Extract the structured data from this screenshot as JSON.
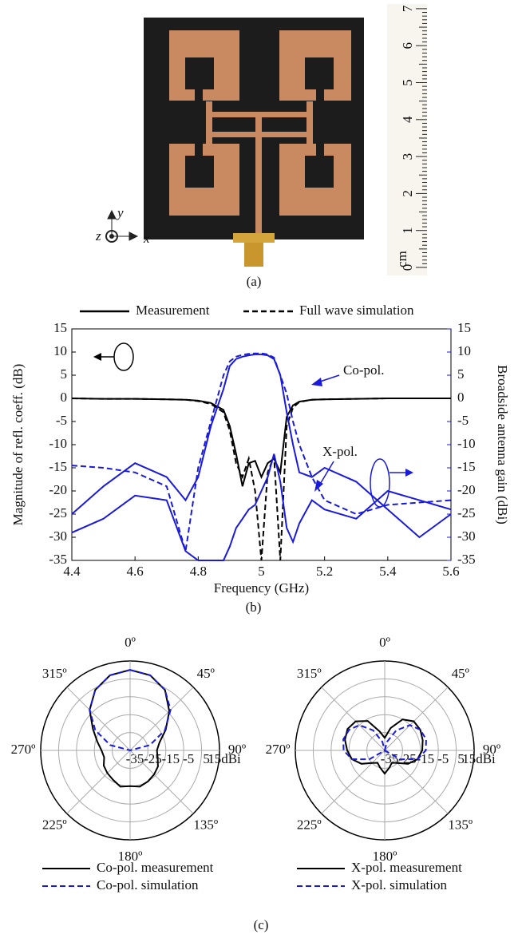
{
  "photo": {
    "caption": "(a)",
    "ruler_unit": "cm",
    "ruler_labels": [
      "0",
      "1",
      "2",
      "3",
      "4",
      "5",
      "6",
      "7"
    ],
    "axis_x": "x",
    "axis_y": "y",
    "axis_z": "z"
  },
  "figure_caption": "(c)",
  "chart_data": [
    {
      "type": "line",
      "caption": "(b)",
      "xlabel": "Frequency (GHz)",
      "ylabel": "Magnitude of refl. coeff. (dB)",
      "y2label": "Broadside antenna gain (dBi)",
      "legend": [
        {
          "label": "Measurement",
          "dash": "solid"
        },
        {
          "label": "Full wave simulation",
          "dash": "dashed"
        }
      ],
      "annotations": [
        "Co-pol.",
        "X-pol."
      ],
      "x": [
        4.4,
        4.5,
        4.6,
        4.7,
        4.76,
        4.8,
        4.84,
        4.88,
        4.9,
        4.92,
        4.94,
        4.96,
        4.98,
        5.0,
        5.02,
        5.04,
        5.06,
        5.08,
        5.1,
        5.12,
        5.16,
        5.2,
        5.3,
        5.4,
        5.5,
        5.6
      ],
      "xlim": [
        4.4,
        5.6
      ],
      "xticks": [
        4.4,
        4.6,
        4.8,
        5,
        5.2,
        5.4,
        5.6
      ],
      "ylim": [
        -35,
        15
      ],
      "yticks": [
        -35,
        -30,
        -25,
        -20,
        -15,
        -10,
        -5,
        0,
        5,
        10,
        15
      ],
      "y2lim": [
        -35,
        15
      ],
      "y2ticks": [
        -35,
        -30,
        -25,
        -20,
        -15,
        -10,
        -5,
        0,
        5,
        10,
        15
      ],
      "y2color": "#1a1adc",
      "series": [
        {
          "color": "#000000",
          "dash": "solid",
          "values": [
            0,
            -0.1,
            -0.1,
            -0.2,
            -0.3,
            -0.5,
            -1,
            -2.5,
            -6,
            -12,
            -19,
            -14,
            -13.5,
            -17,
            -14,
            -13,
            -16,
            -4,
            -1.5,
            -0.7,
            -0.3,
            -0.2,
            -0.1,
            0,
            0,
            0
          ]
        },
        {
          "color": "#000000",
          "dash": "dashed",
          "values": [
            0,
            -0.1,
            -0.1,
            -0.2,
            -0.3,
            -0.6,
            -1.2,
            -3,
            -7,
            -14,
            -17,
            -13,
            -20,
            -35,
            -16,
            -12.5,
            -35,
            -6,
            -2,
            -0.8,
            -0.3,
            -0.2,
            -0.1,
            0,
            0,
            0
          ]
        },
        {
          "color": "#1a1adc",
          "dash": "solid",
          "axis": "y2",
          "values": [
            -25,
            -19,
            -14,
            -17,
            -22,
            -17,
            -6,
            2,
            7,
            8.5,
            9,
            9.3,
            9.5,
            9.5,
            9.3,
            8.5,
            5,
            -3,
            -10,
            -16,
            -17,
            -15,
            -18,
            -24,
            -30,
            -25
          ]
        },
        {
          "color": "#1a1adc",
          "dash": "dashed",
          "axis": "y2",
          "values": [
            -14.5,
            -15,
            -16,
            -19,
            -33,
            -15,
            -5,
            5,
            8,
            9,
            9.4,
            9.6,
            9.7,
            9.7,
            9.5,
            8.8,
            5,
            1,
            -5,
            -10,
            -17,
            -22,
            -25,
            -23,
            -22.5,
            -22
          ]
        },
        {
          "color": "#1a1adc",
          "dash": "solid",
          "axis": "y2",
          "values": [
            -29,
            -26,
            -21,
            -22,
            -33,
            -35,
            -35,
            -35,
            -32,
            -28,
            -26,
            -24,
            -23,
            -20,
            -17,
            -12,
            -18,
            -28,
            -31,
            -27,
            -22,
            -24,
            -26,
            -20,
            -22,
            -24
          ]
        }
      ]
    },
    {
      "type": "polar",
      "theta": [
        0,
        15,
        30,
        45,
        60,
        75,
        90,
        105,
        120,
        135,
        150,
        165,
        180,
        195,
        210,
        225,
        240,
        255,
        270,
        285,
        300,
        315,
        330,
        345
      ],
      "rlim": [
        -35,
        15
      ],
      "rticks": [
        -35,
        -25,
        -15,
        -5,
        5,
        {
          "value": 15,
          "label": "15dBi"
        }
      ],
      "thetaticks": [
        {
          "value": 0,
          "label": "0º"
        },
        {
          "value": 45,
          "label": "45º"
        },
        {
          "value": 90,
          "label": "90º"
        },
        {
          "value": 135,
          "label": "135º"
        },
        {
          "value": 180,
          "label": "180º"
        },
        {
          "value": 225,
          "label": "225º"
        },
        {
          "value": 270,
          "label": "270º"
        },
        {
          "value": 315,
          "label": "315º"
        }
      ],
      "series": [
        {
          "name": "Co-pol. measurement",
          "color": "#000000",
          "dash": "solid",
          "values": [
            10,
            8.5,
            4,
            -4,
            -12,
            -18,
            -20,
            -19,
            -17,
            -16,
            -15,
            -14,
            -15,
            -14,
            -16,
            -17,
            -18,
            -20,
            -19,
            -16,
            -11,
            -3,
            4,
            8.5
          ]
        },
        {
          "name": "Co-pol. simulation",
          "color": "#1a1adc",
          "dash": "dashed",
          "values": [
            10,
            8.5,
            4,
            -3,
            -12.5,
            -23.5,
            -35,
            -35,
            -35,
            -35,
            -35,
            -35,
            -35,
            -35,
            -35,
            -35,
            -35,
            -35,
            -35,
            -23.5,
            -12.5,
            -3,
            4,
            8.5
          ]
        }
      ]
    },
    {
      "type": "polar",
      "theta": [
        0,
        15,
        30,
        45,
        60,
        75,
        90,
        105,
        120,
        135,
        150,
        165,
        180,
        195,
        210,
        225,
        240,
        255,
        270,
        285,
        300,
        315,
        330,
        345
      ],
      "rlim": [
        -35,
        15
      ],
      "rticks": [
        -35,
        -25,
        -15,
        -5,
        5,
        {
          "value": 15,
          "label": "15dBi"
        }
      ],
      "thetaticks": [
        {
          "value": 0,
          "label": "0º"
        },
        {
          "value": 45,
          "label": "45º"
        },
        {
          "value": 90,
          "label": "90º"
        },
        {
          "value": 135,
          "label": "135º"
        },
        {
          "value": 180,
          "label": "180º"
        },
        {
          "value": 225,
          "label": "225º"
        },
        {
          "value": 270,
          "label": "270º"
        },
        {
          "value": 315,
          "label": "315º"
        }
      ],
      "series": [
        {
          "name": "X-pol. measurement",
          "color": "#000000",
          "dash": "solid",
          "values": [
            -28,
            -22,
            -15,
            -12,
            -12,
            -13,
            -14,
            -16,
            -20,
            -25,
            -27,
            -25,
            -22,
            -25,
            -27,
            -25,
            -20,
            -16,
            -14,
            -12,
            -11,
            -12,
            -16,
            -24
          ]
        },
        {
          "name": "X-pol. simulation",
          "color": "#1a1adc",
          "dash": "dashed",
          "values": [
            -35,
            -30,
            -22,
            -15,
            -12,
            -11,
            -12,
            -16,
            -25,
            -35,
            -35,
            -35,
            -35,
            -35,
            -35,
            -35,
            -25,
            -16,
            -12,
            -11,
            -12,
            -15,
            -22,
            -30
          ]
        }
      ]
    }
  ]
}
